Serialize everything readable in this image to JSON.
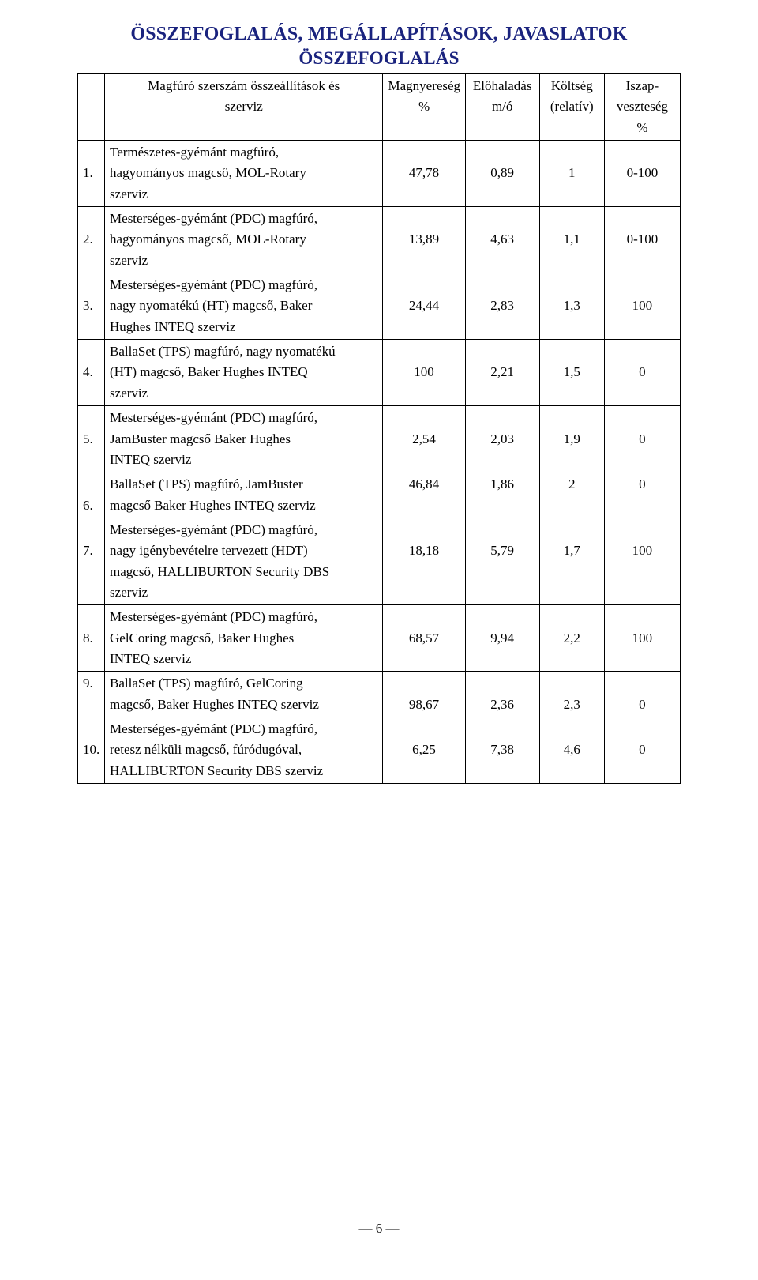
{
  "title_main": "ÖSSZEFOGLALÁS, MEGÁLLAPÍTÁSOK, JAVASLATOK",
  "title_sub": "ÖSSZEFOGLALÁS",
  "header": {
    "col0_top": "",
    "col1_l1": "Magfúró szerszám összeállítások és",
    "col1_l2": "szerviz",
    "col2_l1": "Magnyereség",
    "col2_l2": "%",
    "col3_l1": "Előhaladás",
    "col3_l2": "m/ó",
    "col4_l1": "Költség",
    "col4_l2": "(relatív)",
    "col5_l1": "Iszap-",
    "col5_l2": "veszteség",
    "col5_l3": "%"
  },
  "rows": [
    {
      "idx": "1.",
      "desc_l1": "Természetes-gyémánt magfúró,",
      "desc_l2": "hagyományos magcső, MOL-Rotary",
      "desc_l3": "szerviz",
      "a": "47,78",
      "b": "0,89",
      "c": "1",
      "d": "0-100"
    },
    {
      "idx": "2.",
      "desc_l1": "Mesterséges-gyémánt (PDC) magfúró,",
      "desc_l2": "hagyományos magcső, MOL-Rotary",
      "desc_l3": "szerviz",
      "a": "13,89",
      "b": "4,63",
      "c": "1,1",
      "d": "0-100"
    },
    {
      "idx": "3.",
      "desc_l1": "Mesterséges-gyémánt (PDC) magfúró,",
      "desc_l2": "nagy nyomatékú (HT) magcső, Baker",
      "desc_l3": "Hughes INTEQ szerviz",
      "a": "24,44",
      "b": "2,83",
      "c": "1,3",
      "d": "100"
    },
    {
      "idx": "4.",
      "desc_l1": "BallaSet (TPS) magfúró, nagy nyomatékú",
      "desc_l2": "(HT) magcső, Baker Hughes INTEQ",
      "desc_l3": "szerviz",
      "a": "100",
      "b": "2,21",
      "c": "1,5",
      "d": "0"
    },
    {
      "idx": "5.",
      "desc_l1": "Mesterséges-gyémánt (PDC) magfúró,",
      "desc_l2": "JamBuster magcső Baker Hughes",
      "desc_l3": "INTEQ szerviz",
      "a": "2,54",
      "b": "2,03",
      "c": "1,9",
      "d": "0"
    },
    {
      "idx": "6.",
      "desc_l1": "BallaSet (TPS) magfúró, JamBuster",
      "desc_l2": "magcső Baker Hughes INTEQ szerviz",
      "desc_l3": "",
      "a": "46,84",
      "b": "1,86",
      "c": "2",
      "d": "0"
    },
    {
      "idx": "7.",
      "desc_l1": "Mesterséges-gyémánt (PDC) magfúró,",
      "desc_l2": "nagy igénybevételre tervezett (HDT)",
      "desc_l3": "magcső, HALLIBURTON Security DBS",
      "desc_l4": "szerviz",
      "a": "18,18",
      "b": "5,79",
      "c": "1,7",
      "d": "100"
    },
    {
      "idx": "8.",
      "desc_l1": "Mesterséges-gyémánt (PDC) magfúró,",
      "desc_l2": "GelCoring magcső, Baker Hughes",
      "desc_l3": "INTEQ szerviz",
      "a": "68,57",
      "b": "9,94",
      "c": "2,2",
      "d": "100"
    },
    {
      "idx": "9.",
      "desc_l1": "BallaSet (TPS) magfúró, GelCoring",
      "desc_l2": "magcső, Baker Hughes INTEQ szerviz",
      "desc_l3": "",
      "a": "98,67",
      "b": "2,36",
      "c": "2,3",
      "d": "0"
    },
    {
      "idx": "10.",
      "desc_l1": "Mesterséges-gyémánt (PDC) magfúró,",
      "desc_l2": "retesz nélküli magcső, fúródugóval,",
      "desc_l3": "HALLIBURTON Security DBS  szerviz",
      "a": "6,25",
      "b": "7,38",
      "c": "4,6",
      "d": "0"
    }
  ],
  "footer_page": "6",
  "colors": {
    "title": "#1a237e",
    "text": "#000000",
    "border": "#000000",
    "background": "#ffffff"
  },
  "fontsize": {
    "title_main": 24,
    "title_sub": 23,
    "body": 17
  }
}
